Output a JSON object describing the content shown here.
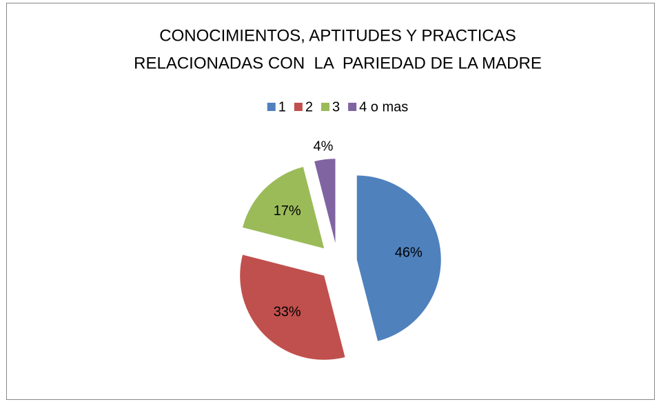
{
  "chart_data": {
    "type": "pie",
    "title": [
      "CONOCIMIENTOS, APTITUDES Y PRACTICAS",
      "RELACIONADAS CON  LA  PARIEDAD DE LA MADRE"
    ],
    "categories": [
      "1",
      "2",
      "3",
      "4 o mas"
    ],
    "values": [
      46,
      33,
      17,
      4
    ],
    "value_labels": [
      "46%",
      "33%",
      "17%",
      "4%"
    ],
    "colors": [
      "#4f81bd",
      "#c0504d",
      "#9bbb59",
      "#8064a2"
    ],
    "legend": "top"
  }
}
